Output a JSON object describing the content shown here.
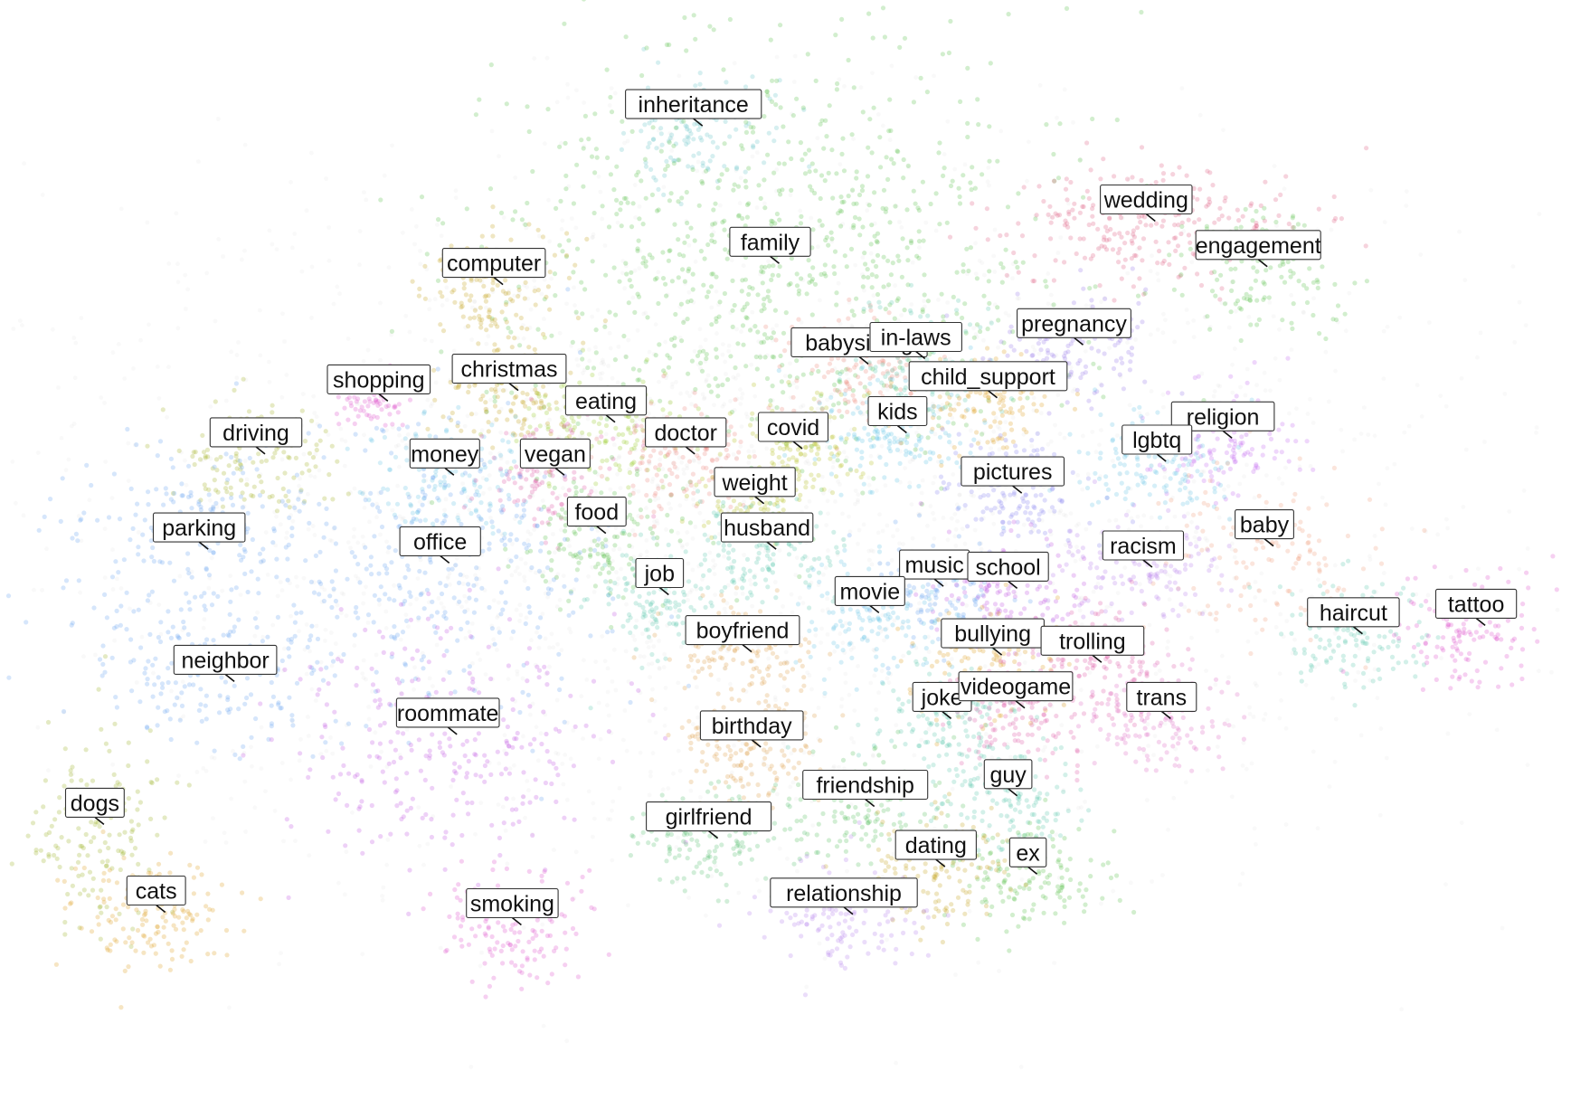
{
  "chart_data": {
    "type": "scatter",
    "title": "",
    "xlabel": "",
    "ylabel": "",
    "grid": false,
    "legend": "none",
    "axes_visible": false,
    "background_points_color": "#bdbdbd",
    "clusters": [
      {
        "label": "inheritance",
        "x": 0.44,
        "y": 0.905,
        "color": "#6cc6c8"
      },
      {
        "label": "family",
        "x": 0.49,
        "y": 0.775,
        "color": "#5cc14e"
      },
      {
        "label": "wedding",
        "x": 0.735,
        "y": 0.815,
        "color": "#e06286"
      },
      {
        "label": "engagement",
        "x": 0.808,
        "y": 0.772,
        "color": "#5cc14e"
      },
      {
        "label": "computer",
        "x": 0.31,
        "y": 0.755,
        "color": "#c6a623"
      },
      {
        "label": "christmas",
        "x": 0.32,
        "y": 0.655,
        "color": "#c6a623"
      },
      {
        "label": "babysitting",
        "x": 0.548,
        "y": 0.68,
        "color": "#ec8b7c"
      },
      {
        "label": "in-laws",
        "x": 0.585,
        "y": 0.685,
        "color": "#62c8b0"
      },
      {
        "label": "pregnancy",
        "x": 0.688,
        "y": 0.698,
        "color": "#9a7fe8"
      },
      {
        "label": "child_support",
        "x": 0.632,
        "y": 0.648,
        "color": "#dfa026"
      },
      {
        "label": "shopping",
        "x": 0.235,
        "y": 0.645,
        "color": "#df55cd"
      },
      {
        "label": "eating",
        "x": 0.383,
        "y": 0.625,
        "color": "#9acc30"
      },
      {
        "label": "driving",
        "x": 0.155,
        "y": 0.595,
        "color": "#a5b52c"
      },
      {
        "label": "covid",
        "x": 0.505,
        "y": 0.6,
        "color": "#b6c226"
      },
      {
        "label": "kids",
        "x": 0.573,
        "y": 0.615,
        "color": "#66c6e6"
      },
      {
        "label": "religion",
        "x": 0.785,
        "y": 0.61,
        "color": "#c471ef"
      },
      {
        "label": "money",
        "x": 0.278,
        "y": 0.575,
        "color": "#6cc6e6"
      },
      {
        "label": "doctor",
        "x": 0.435,
        "y": 0.595,
        "color": "#ec8b85"
      },
      {
        "label": "lgbtq",
        "x": 0.742,
        "y": 0.588,
        "color": "#6ac6e6"
      },
      {
        "label": "vegan",
        "x": 0.35,
        "y": 0.575,
        "color": "#e05da8"
      },
      {
        "label": "pictures",
        "x": 0.648,
        "y": 0.558,
        "color": "#8d88ef"
      },
      {
        "label": "weight",
        "x": 0.48,
        "y": 0.548,
        "color": "#b8c323"
      },
      {
        "label": "food",
        "x": 0.377,
        "y": 0.52,
        "color": "#5cc14e"
      },
      {
        "label": "baby",
        "x": 0.812,
        "y": 0.508,
        "color": "#f0a080"
      },
      {
        "label": "husband",
        "x": 0.488,
        "y": 0.505,
        "color": "#62c8b0"
      },
      {
        "label": "parking",
        "x": 0.118,
        "y": 0.505,
        "color": "#6aa6f0"
      },
      {
        "label": "office",
        "x": 0.275,
        "y": 0.492,
        "color": "#6aa6f0"
      },
      {
        "label": "job",
        "x": 0.418,
        "y": 0.462,
        "color": "#62c8b0"
      },
      {
        "label": "music",
        "x": 0.597,
        "y": 0.47,
        "color": "#6aa6f0"
      },
      {
        "label": "school",
        "x": 0.645,
        "y": 0.468,
        "color": "#c35be3"
      },
      {
        "label": "racism",
        "x": 0.733,
        "y": 0.488,
        "color": "#bb84ec"
      },
      {
        "label": "movie",
        "x": 0.555,
        "y": 0.445,
        "color": "#6ac6e6"
      },
      {
        "label": "haircut",
        "x": 0.87,
        "y": 0.425,
        "color": "#62c8b0"
      },
      {
        "label": "tattoo",
        "x": 0.95,
        "y": 0.433,
        "color": "#df55cd"
      },
      {
        "label": "boyfriend",
        "x": 0.472,
        "y": 0.408,
        "color": "#dfa050"
      },
      {
        "label": "bullying",
        "x": 0.635,
        "y": 0.405,
        "color": "#dfa026"
      },
      {
        "label": "trolling",
        "x": 0.7,
        "y": 0.398,
        "color": "#e05da8"
      },
      {
        "label": "neighbor",
        "x": 0.135,
        "y": 0.38,
        "color": "#6aa6f0"
      },
      {
        "label": "joke",
        "x": 0.602,
        "y": 0.345,
        "color": "#62c8b0"
      },
      {
        "label": "videogame",
        "x": 0.65,
        "y": 0.355,
        "color": "#e05da8"
      },
      {
        "label": "trans",
        "x": 0.745,
        "y": 0.345,
        "color": "#e06ec6"
      },
      {
        "label": "roommate",
        "x": 0.28,
        "y": 0.33,
        "color": "#c35be3"
      },
      {
        "label": "birthday",
        "x": 0.478,
        "y": 0.318,
        "color": "#dfa050"
      },
      {
        "label": "friendship",
        "x": 0.552,
        "y": 0.262,
        "color": "#5cc166"
      },
      {
        "label": "guy",
        "x": 0.645,
        "y": 0.272,
        "color": "#62c8b0"
      },
      {
        "label": "girlfriend",
        "x": 0.45,
        "y": 0.232,
        "color": "#5cc178"
      },
      {
        "label": "dogs",
        "x": 0.05,
        "y": 0.245,
        "color": "#9db52c"
      },
      {
        "label": "ex",
        "x": 0.658,
        "y": 0.198,
        "color": "#5cc14e"
      },
      {
        "label": "dating",
        "x": 0.598,
        "y": 0.205,
        "color": "#c6a623"
      },
      {
        "label": "cats",
        "x": 0.09,
        "y": 0.162,
        "color": "#dfa026"
      },
      {
        "label": "smoking",
        "x": 0.322,
        "y": 0.15,
        "color": "#df55cd"
      },
      {
        "label": "relationship",
        "x": 0.538,
        "y": 0.16,
        "color": "#b884ec"
      }
    ]
  }
}
